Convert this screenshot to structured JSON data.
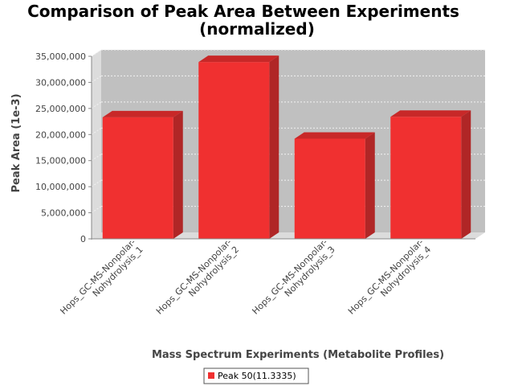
{
  "chart_data": {
    "type": "bar",
    "title": "Comparison of Peak Area Between Experiments",
    "subtitle": "(normalized)",
    "xlabel": "Mass Spectrum Experiments (Metabolite Profiles)",
    "ylabel": "Peak Area (1e-3)",
    "categories": [
      "Hops_GC-MS-Nonpolar-Nohydrolysis_1",
      "Hops_GC-MS-Nonpolar-Nohydrolysis_2",
      "Hops_GC-MS-Nonpolar-Nohydrolysis_3",
      "Hops_GC-MS-Nonpolar-Nohydrolysis_4"
    ],
    "category_lines": [
      [
        "Hops_GC-MS-Nonpolar-",
        "Nohydrolysis_1"
      ],
      [
        "Hops_GC-MS-Nonpolar-",
        "Nohydrolysis_2"
      ],
      [
        "Hops_GC-MS-Nonpolar-",
        "Nohydrolysis_3"
      ],
      [
        "Hops_GC-MS-Nonpolar-",
        "Nohydrolysis_4"
      ]
    ],
    "series": [
      {
        "name": "Peak 50(11.3335)",
        "values": [
          23300000,
          33900000,
          19200000,
          23400000
        ]
      }
    ],
    "ylim": [
      0,
      35000000
    ],
    "yticks": [
      0,
      5000000,
      10000000,
      15000000,
      20000000,
      25000000,
      30000000,
      35000000
    ],
    "ytick_labels": [
      "0",
      "5,000,000",
      "10,000,000",
      "15,000,000",
      "20,000,000",
      "25,000,000",
      "30,000,000",
      "35,000,000"
    ],
    "grid": true,
    "legend_position": "bottom-center",
    "colors": {
      "bar": "#f03030",
      "bar_top": "#c82828",
      "bar_side": "#b02626",
      "plot_bg": "#c0c0c0",
      "wall": "#dcdcdc"
    }
  }
}
